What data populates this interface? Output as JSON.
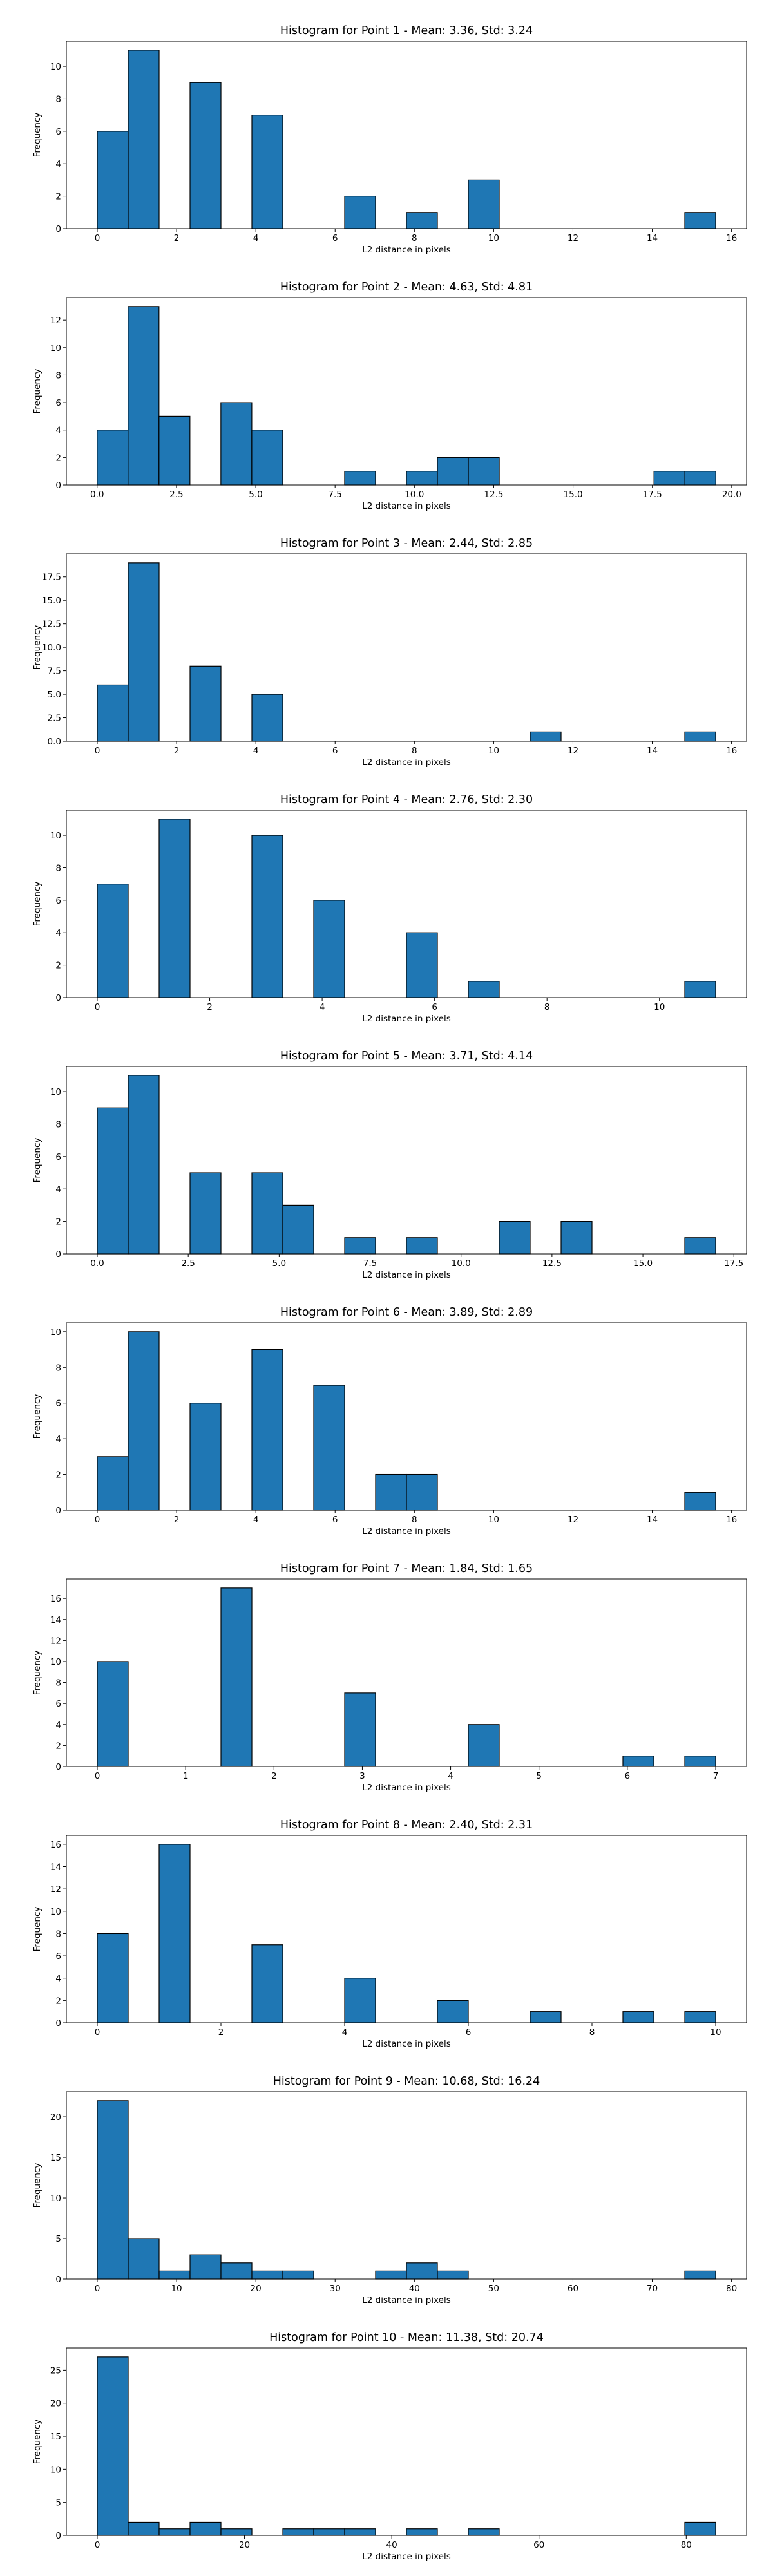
{
  "chart_data": [
    {
      "type": "bar",
      "title": "Histogram for Point 1 - Mean: 3.36, Std: 3.24",
      "xlabel": "L2 distance in pixels",
      "ylabel": "Frequency",
      "xlim": [
        -0.78,
        16.38
      ],
      "ylim": [
        0,
        11.55
      ],
      "xticks": [
        0,
        2,
        4,
        6,
        8,
        10,
        12,
        14,
        16
      ],
      "xtick_labels": [
        "0",
        "2",
        "4",
        "6",
        "8",
        "10",
        "12",
        "14",
        "16"
      ],
      "yticks": [
        0,
        2,
        4,
        6,
        8,
        10
      ],
      "ytick_labels": [
        "0",
        "2",
        "4",
        "6",
        "8",
        "10"
      ],
      "bins": {
        "start": 0.0,
        "width": 0.78
      },
      "counts": [
        6,
        11,
        0,
        9,
        0,
        7,
        0,
        0,
        2,
        0,
        1,
        0,
        3,
        0,
        0,
        0,
        0,
        0,
        0,
        1
      ]
    },
    {
      "type": "bar",
      "title": "Histogram for Point 2 - Mean: 4.63, Std: 4.81",
      "xlabel": "L2 distance in pixels",
      "ylabel": "Frequency",
      "xlim": [
        -0.97,
        20.47
      ],
      "ylim": [
        0,
        13.65
      ],
      "xticks": [
        0,
        2.5,
        5,
        7.5,
        10,
        12.5,
        15,
        17.5,
        20
      ],
      "xtick_labels": [
        "0.0",
        "2.5",
        "5.0",
        "7.5",
        "10.0",
        "12.5",
        "15.0",
        "17.5",
        "20.0"
      ],
      "yticks": [
        0,
        2,
        4,
        6,
        8,
        10,
        12
      ],
      "ytick_labels": [
        "0",
        "2",
        "4",
        "6",
        "8",
        "10",
        "12"
      ],
      "bins": {
        "start": 0.0,
        "width": 0.975
      },
      "counts": [
        4,
        13,
        5,
        0,
        6,
        4,
        0,
        0,
        1,
        0,
        1,
        2,
        2,
        0,
        0,
        0,
        0,
        0,
        1,
        1
      ]
    },
    {
      "type": "bar",
      "title": "Histogram for Point 3 - Mean: 2.44, Std: 2.85",
      "xlabel": "L2 distance in pixels",
      "ylabel": "Frequency",
      "xlim": [
        -0.78,
        16.38
      ],
      "ylim": [
        0,
        19.95
      ],
      "xticks": [
        0,
        2,
        4,
        6,
        8,
        10,
        12,
        14,
        16
      ],
      "xtick_labels": [
        "0",
        "2",
        "4",
        "6",
        "8",
        "10",
        "12",
        "14",
        "16"
      ],
      "yticks": [
        0,
        2.5,
        5,
        7.5,
        10,
        12.5,
        15,
        17.5
      ],
      "ytick_labels": [
        "0.0",
        "2.5",
        "5.0",
        "7.5",
        "10.0",
        "12.5",
        "15.0",
        "17.5"
      ],
      "bins": {
        "start": 0.0,
        "width": 0.78
      },
      "counts": [
        6,
        19,
        0,
        8,
        0,
        5,
        0,
        0,
        0,
        0,
        0,
        0,
        0,
        0,
        1,
        0,
        0,
        0,
        0,
        1
      ]
    },
    {
      "type": "bar",
      "title": "Histogram for Point 4 - Mean: 2.76, Std: 2.30",
      "xlabel": "L2 distance in pixels",
      "ylabel": "Frequency",
      "xlim": [
        -0.55,
        11.55
      ],
      "ylim": [
        0,
        11.55
      ],
      "xticks": [
        0,
        2,
        4,
        6,
        8,
        10
      ],
      "xtick_labels": [
        "0",
        "2",
        "4",
        "6",
        "8",
        "10"
      ],
      "yticks": [
        0,
        2,
        4,
        6,
        8,
        10
      ],
      "ytick_labels": [
        "0",
        "2",
        "4",
        "6",
        "8",
        "10"
      ],
      "bins": {
        "start": 0.0,
        "width": 0.55
      },
      "counts": [
        7,
        0,
        11,
        0,
        0,
        10,
        0,
        6,
        0,
        0,
        4,
        0,
        1,
        0,
        0,
        0,
        0,
        0,
        0,
        1
      ]
    },
    {
      "type": "bar",
      "title": "Histogram for Point 5 - Mean: 3.71, Std: 4.14",
      "xlabel": "L2 distance in pixels",
      "ylabel": "Frequency",
      "xlim": [
        -0.85,
        17.85
      ],
      "ylim": [
        0,
        11.55
      ],
      "xticks": [
        0,
        2.5,
        5,
        7.5,
        10,
        12.5,
        15,
        17.5
      ],
      "xtick_labels": [
        "0.0",
        "2.5",
        "5.0",
        "7.5",
        "10.0",
        "12.5",
        "15.0",
        "17.5"
      ],
      "yticks": [
        0,
        2,
        4,
        6,
        8,
        10
      ],
      "ytick_labels": [
        "0",
        "2",
        "4",
        "6",
        "8",
        "10"
      ],
      "bins": {
        "start": 0.0,
        "width": 0.85
      },
      "counts": [
        9,
        11,
        0,
        5,
        0,
        5,
        3,
        0,
        1,
        0,
        1,
        0,
        0,
        2,
        0,
        2,
        0,
        0,
        0,
        1
      ]
    },
    {
      "type": "bar",
      "title": "Histogram for Point 6 - Mean: 3.89, Std: 2.89",
      "xlabel": "L2 distance in pixels",
      "ylabel": "Frequency",
      "xlim": [
        -0.78,
        16.38
      ],
      "ylim": [
        0,
        10.5
      ],
      "xticks": [
        0,
        2,
        4,
        6,
        8,
        10,
        12,
        14,
        16
      ],
      "xtick_labels": [
        "0",
        "2",
        "4",
        "6",
        "8",
        "10",
        "12",
        "14",
        "16"
      ],
      "yticks": [
        0,
        2,
        4,
        6,
        8,
        10
      ],
      "ytick_labels": [
        "0",
        "2",
        "4",
        "6",
        "8",
        "10"
      ],
      "bins": {
        "start": 0.0,
        "width": 0.78
      },
      "counts": [
        3,
        10,
        0,
        6,
        0,
        9,
        0,
        7,
        0,
        2,
        2,
        0,
        0,
        0,
        0,
        0,
        0,
        0,
        0,
        1
      ]
    },
    {
      "type": "bar",
      "title": "Histogram for Point 7 - Mean: 1.84, Std: 1.65",
      "xlabel": "L2 distance in pixels",
      "ylabel": "Frequency",
      "xlim": [
        -0.35,
        7.35
      ],
      "ylim": [
        0,
        17.85
      ],
      "xticks": [
        0,
        1,
        2,
        3,
        4,
        5,
        6,
        7
      ],
      "xtick_labels": [
        "0",
        "1",
        "2",
        "3",
        "4",
        "5",
        "6",
        "7"
      ],
      "yticks": [
        0,
        2,
        4,
        6,
        8,
        10,
        12,
        14,
        16
      ],
      "ytick_labels": [
        "0",
        "2",
        "4",
        "6",
        "8",
        "10",
        "12",
        "14",
        "16"
      ],
      "bins": {
        "start": 0.0,
        "width": 0.35
      },
      "counts": [
        10,
        0,
        0,
        0,
        17,
        0,
        0,
        0,
        7,
        0,
        0,
        0,
        4,
        0,
        0,
        0,
        0,
        1,
        0,
        1
      ]
    },
    {
      "type": "bar",
      "title": "Histogram for Point 8 - Mean: 2.40, Std: 2.31",
      "xlabel": "L2 distance in pixels",
      "ylabel": "Frequency",
      "xlim": [
        -0.5,
        10.5
      ],
      "ylim": [
        0,
        16.8
      ],
      "xticks": [
        0,
        2,
        4,
        6,
        8,
        10
      ],
      "xtick_labels": [
        "0",
        "2",
        "4",
        "6",
        "8",
        "10"
      ],
      "yticks": [
        0,
        2,
        4,
        6,
        8,
        10,
        12,
        14,
        16
      ],
      "ytick_labels": [
        "0",
        "2",
        "4",
        "6",
        "8",
        "10",
        "12",
        "14",
        "16"
      ],
      "bins": {
        "start": 0.0,
        "width": 0.5
      },
      "counts": [
        8,
        0,
        16,
        0,
        0,
        7,
        0,
        0,
        4,
        0,
        0,
        2,
        0,
        0,
        1,
        0,
        0,
        1,
        0,
        1
      ]
    },
    {
      "type": "bar",
      "title": "Histogram for Point 9 - Mean: 10.68, Std: 16.24",
      "xlabel": "L2 distance in pixels",
      "ylabel": "Frequency",
      "xlim": [
        -3.9,
        81.9
      ],
      "ylim": [
        0,
        23.1
      ],
      "xticks": [
        0,
        10,
        20,
        30,
        40,
        50,
        60,
        70,
        80
      ],
      "xtick_labels": [
        "0",
        "10",
        "20",
        "30",
        "40",
        "50",
        "60",
        "70",
        "80"
      ],
      "yticks": [
        0,
        5,
        10,
        15,
        20
      ],
      "ytick_labels": [
        "0",
        "5",
        "10",
        "15",
        "20"
      ],
      "bins": {
        "start": 0.0,
        "width": 3.9
      },
      "counts": [
        22,
        5,
        1,
        3,
        2,
        1,
        1,
        0,
        0,
        1,
        2,
        1,
        0,
        0,
        0,
        0,
        0,
        0,
        0,
        1
      ]
    },
    {
      "type": "bar",
      "title": "Histogram for Point 10 - Mean: 11.38, Std: 20.74",
      "xlabel": "L2 distance in pixels",
      "ylabel": "Frequency",
      "xlim": [
        -4.2,
        88.2
      ],
      "ylim": [
        0,
        28.35
      ],
      "xticks": [
        0,
        20,
        40,
        60,
        80
      ],
      "xtick_labels": [
        "0",
        "20",
        "40",
        "60",
        "80"
      ],
      "yticks": [
        0,
        5,
        10,
        15,
        20,
        25
      ],
      "ytick_labels": [
        "0",
        "5",
        "10",
        "15",
        "20",
        "25"
      ],
      "bins": {
        "start": 0.0,
        "width": 4.2
      },
      "counts": [
        27,
        2,
        1,
        2,
        1,
        0,
        1,
        1,
        1,
        0,
        1,
        0,
        1,
        0,
        0,
        0,
        0,
        0,
        0,
        2
      ]
    }
  ]
}
